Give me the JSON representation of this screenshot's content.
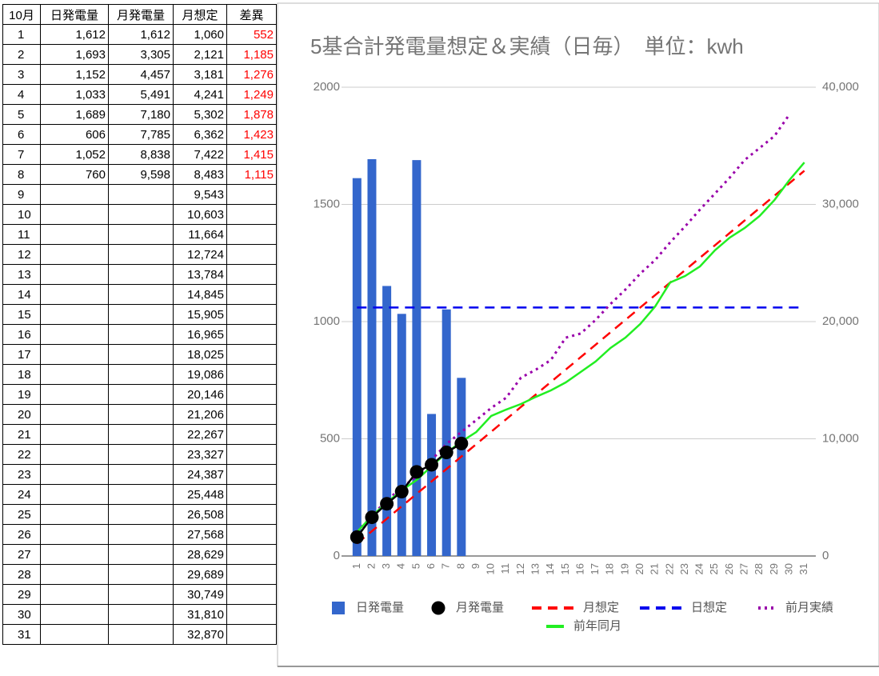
{
  "table": {
    "header": [
      "10月",
      "日発電量",
      "月発電量",
      "月想定",
      "差異"
    ],
    "rows": [
      [
        "1",
        "1,612",
        "1,612",
        "1,060",
        "552"
      ],
      [
        "2",
        "1,693",
        "3,305",
        "2,121",
        "1,185"
      ],
      [
        "3",
        "1,152",
        "4,457",
        "3,181",
        "1,276"
      ],
      [
        "4",
        "1,033",
        "5,491",
        "4,241",
        "1,249"
      ],
      [
        "5",
        "1,689",
        "7,180",
        "5,302",
        "1,878"
      ],
      [
        "6",
        "606",
        "7,785",
        "6,362",
        "1,423"
      ],
      [
        "7",
        "1,052",
        "8,838",
        "7,422",
        "1,415"
      ],
      [
        "8",
        "760",
        "9,598",
        "8,483",
        "1,115"
      ],
      [
        "9",
        null,
        null,
        "9,543",
        null
      ],
      [
        "10",
        null,
        null,
        "10,603",
        null
      ],
      [
        "11",
        null,
        null,
        "11,664",
        null
      ],
      [
        "12",
        null,
        null,
        "12,724",
        null
      ],
      [
        "13",
        null,
        null,
        "13,784",
        null
      ],
      [
        "14",
        null,
        null,
        "14,845",
        null
      ],
      [
        "15",
        null,
        null,
        "15,905",
        null
      ],
      [
        "16",
        null,
        null,
        "16,965",
        null
      ],
      [
        "17",
        null,
        null,
        "18,025",
        null
      ],
      [
        "18",
        null,
        null,
        "19,086",
        null
      ],
      [
        "19",
        null,
        null,
        "20,146",
        null
      ],
      [
        "20",
        null,
        null,
        "21,206",
        null
      ],
      [
        "21",
        null,
        null,
        "22,267",
        null
      ],
      [
        "22",
        null,
        null,
        "23,327",
        null
      ],
      [
        "23",
        null,
        null,
        "24,387",
        null
      ],
      [
        "24",
        null,
        null,
        "25,448",
        null
      ],
      [
        "25",
        null,
        null,
        "26,508",
        null
      ],
      [
        "26",
        null,
        null,
        "27,568",
        null
      ],
      [
        "27",
        null,
        null,
        "28,629",
        null
      ],
      [
        "28",
        null,
        null,
        "29,689",
        null
      ],
      [
        "29",
        null,
        null,
        "30,749",
        null
      ],
      [
        "30",
        null,
        null,
        "31,810",
        null
      ],
      [
        "31",
        null,
        null,
        "32,870",
        null
      ]
    ]
  },
  "chart_data": {
    "type": "combo",
    "title": "5基合計発電量想定＆実績（日毎）　単位：kwh",
    "categories": [
      "1",
      "2",
      "3",
      "4",
      "5",
      "6",
      "7",
      "8",
      "9",
      "10",
      "11",
      "12",
      "13",
      "14",
      "15",
      "16",
      "17",
      "18",
      "19",
      "20",
      "21",
      "22",
      "23",
      "24",
      "25",
      "26",
      "27",
      "28",
      "29",
      "30",
      "31"
    ],
    "ylim": [
      0,
      2000
    ],
    "yticks": [
      0,
      500,
      1000,
      1500,
      2000
    ],
    "y2lim": [
      0,
      40000
    ],
    "y2ticks": [
      0,
      {
        "value": 10000,
        "label": "10,000"
      },
      {
        "value": 20000,
        "label": "20,000"
      },
      {
        "value": 30000,
        "label": "30,000"
      },
      {
        "value": 40000,
        "label": "40,000"
      }
    ],
    "grid": true,
    "legend": "bottom",
    "series": [
      {
        "name": "日発電量",
        "type": "bar",
        "color": "#3366cc",
        "values": [
          1612,
          1693,
          1152,
          1033,
          1689,
          606,
          1052,
          760,
          null,
          null,
          null,
          null,
          null,
          null,
          null,
          null,
          null,
          null,
          null,
          null,
          null,
          null,
          null,
          null,
          null,
          null,
          null,
          null,
          null,
          null,
          null
        ]
      },
      {
        "name": "月発電量",
        "type": "line",
        "style": "solid",
        "marker": "circle",
        "color": "#000000",
        "axis": "y2",
        "values": [
          1612,
          3305,
          4457,
          5491,
          7180,
          7785,
          8838,
          9598,
          null,
          null,
          null,
          null,
          null,
          null,
          null,
          null,
          null,
          null,
          null,
          null,
          null,
          null,
          null,
          null,
          null,
          null,
          null,
          null,
          null,
          null,
          null
        ]
      },
      {
        "name": "月想定",
        "type": "line",
        "style": "dashed",
        "color": "#ff0000",
        "axis": "y2",
        "values": [
          1060,
          2121,
          3181,
          4241,
          5302,
          6362,
          7422,
          8483,
          9543,
          10603,
          11664,
          12724,
          13784,
          14845,
          15905,
          16965,
          18025,
          19086,
          20146,
          21206,
          22267,
          23327,
          24387,
          25448,
          26508,
          27568,
          28629,
          29689,
          30749,
          31810,
          32870
        ]
      },
      {
        "name": "日想定",
        "type": "line",
        "style": "dashed",
        "color": "#0000ee",
        "values": [
          1060,
          1060,
          1060,
          1060,
          1060,
          1060,
          1060,
          1060,
          1060,
          1060,
          1060,
          1060,
          1060,
          1060,
          1060,
          1060,
          1060,
          1060,
          1060,
          1060,
          1060,
          1060,
          1060,
          1060,
          1060,
          1060,
          1060,
          1060,
          1060,
          1060,
          1060
        ]
      },
      {
        "name": "前月実績",
        "type": "line",
        "style": "dotted",
        "color": "#9900aa",
        "axis": "y2",
        "values": [
          2050,
          3410,
          4780,
          5800,
          6830,
          8190,
          9560,
          10580,
          11600,
          12630,
          13500,
          15220,
          15900,
          16720,
          18630,
          18980,
          20140,
          21500,
          22730,
          24100,
          25260,
          26760,
          28120,
          29560,
          30920,
          32290,
          33790,
          34810,
          35840,
          37680,
          null
        ]
      },
      {
        "name": "前年同月",
        "type": "line",
        "style": "solid",
        "color": "#22ee22",
        "axis": "y2",
        "values": [
          2050,
          3400,
          4570,
          5600,
          6480,
          7650,
          8810,
          9760,
          10580,
          11950,
          12490,
          12970,
          13580,
          14130,
          14810,
          15700,
          16590,
          17750,
          18630,
          19800,
          21300,
          23340,
          23890,
          24710,
          26080,
          27170,
          27990,
          29010,
          30380,
          32080,
          33580
        ]
      }
    ]
  }
}
